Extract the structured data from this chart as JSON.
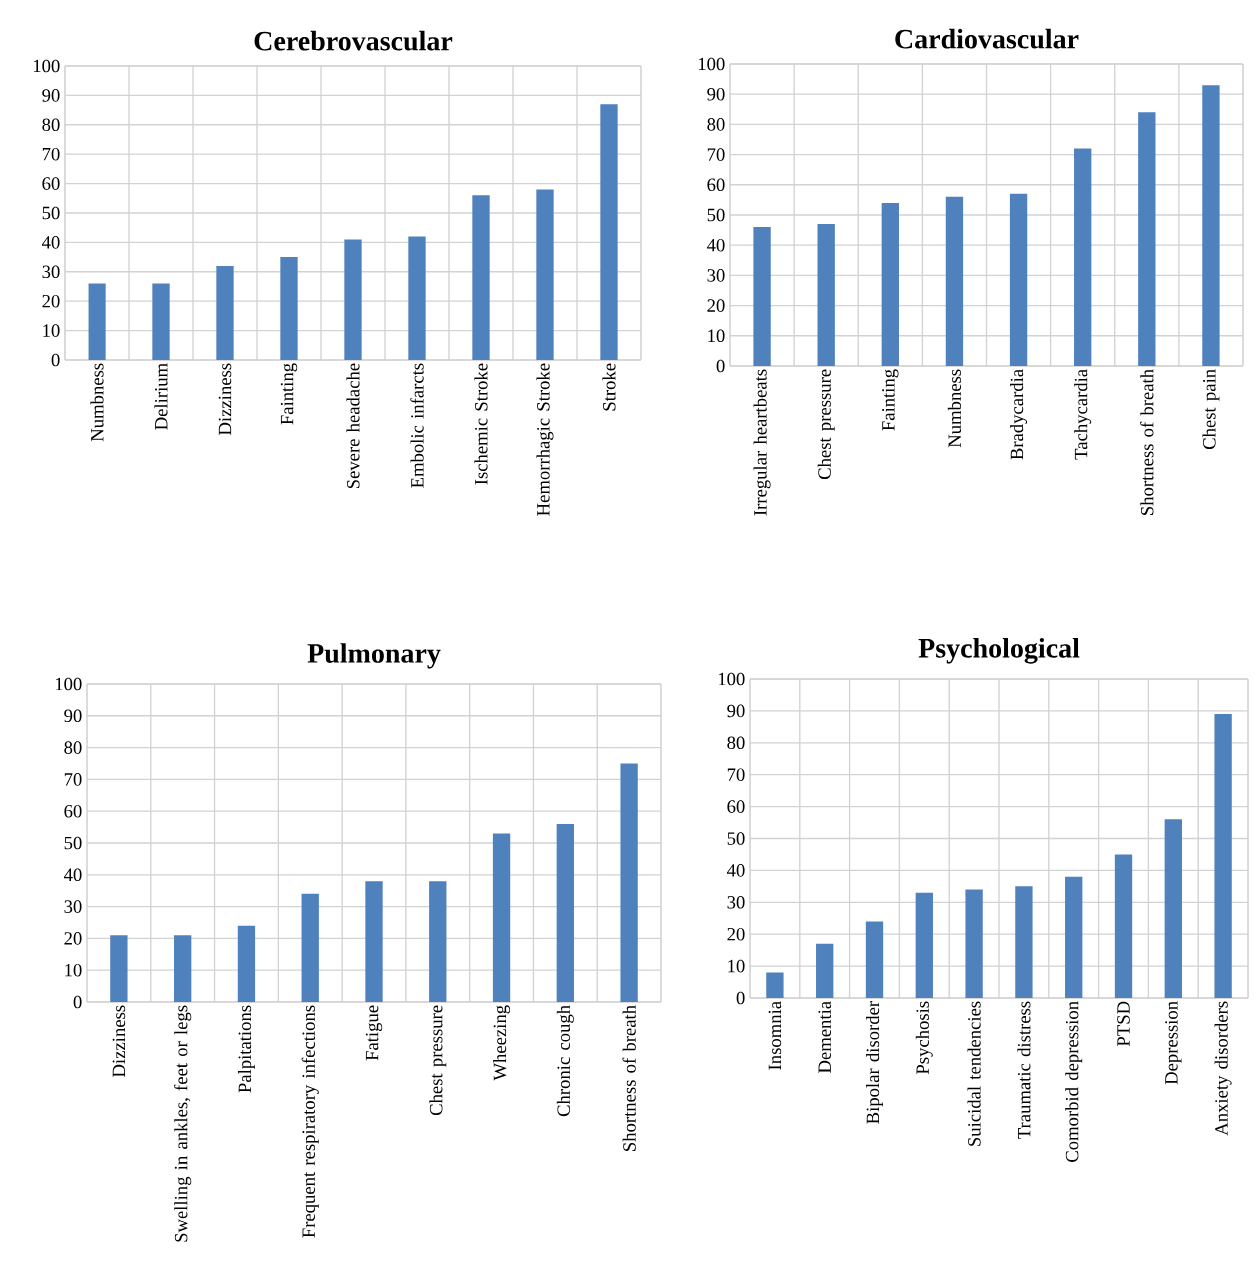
{
  "chart_data": [
    {
      "type": "bar",
      "title": "Cerebrovascular",
      "categories": [
        "Numbness",
        "Delirium",
        "Dizziness",
        "Fainting",
        "Severe headache",
        "Embolic infarcts",
        "Ischemic Stroke",
        "Hemorrhagic Stroke",
        "Stroke"
      ],
      "values": [
        26,
        26,
        32,
        35,
        41,
        42,
        56,
        58,
        87
      ],
      "color": "#4f81bd",
      "ylim": [
        0,
        100
      ],
      "yticks": [
        0,
        10,
        20,
        30,
        40,
        50,
        60,
        70,
        80,
        90,
        100
      ],
      "grid": true
    },
    {
      "type": "bar",
      "title": "Cardiovascular",
      "categories": [
        "Irregular heartbeats",
        "Chest pressure",
        "Fainting",
        "Numbness",
        "Bradycardia",
        "Tachycardia",
        "Shortness of breath",
        "Chest pain"
      ],
      "values": [
        46,
        47,
        54,
        56,
        57,
        72,
        84,
        93
      ],
      "color": "#4f81bd",
      "ylim": [
        0,
        100
      ],
      "yticks": [
        0,
        10,
        20,
        30,
        40,
        50,
        60,
        70,
        80,
        90,
        100
      ],
      "grid": true
    },
    {
      "type": "bar",
      "title": "Pulmonary",
      "categories": [
        "Dizziness",
        "Swelling in ankles, feet or legs",
        "Palpitations",
        "Frequent respiratory infections",
        "Fatigue",
        "Chest pressure",
        "Wheezing",
        "Chronic cough",
        "Shortness of breath"
      ],
      "values": [
        21,
        21,
        24,
        34,
        38,
        38,
        53,
        56,
        75
      ],
      "color": "#4f81bd",
      "ylim": [
        0,
        100
      ],
      "yticks": [
        0,
        10,
        20,
        30,
        40,
        50,
        60,
        70,
        80,
        90,
        100
      ],
      "grid": true
    },
    {
      "type": "bar",
      "title": "Psychological",
      "categories": [
        "Insomnia",
        "Dementia",
        "Bipolar disorder",
        "Psychosis",
        "Suicidal tendencies",
        "Traumatic distress",
        "Comorbid depression",
        "PTSD",
        "Depression",
        "Anxiety disorders"
      ],
      "values": [
        8,
        17,
        24,
        33,
        34,
        35,
        38,
        45,
        56,
        89
      ],
      "color": "#4f81bd",
      "ylim": [
        0,
        100
      ],
      "yticks": [
        0,
        10,
        20,
        30,
        40,
        50,
        60,
        70,
        80,
        90,
        100
      ],
      "grid": true
    }
  ]
}
